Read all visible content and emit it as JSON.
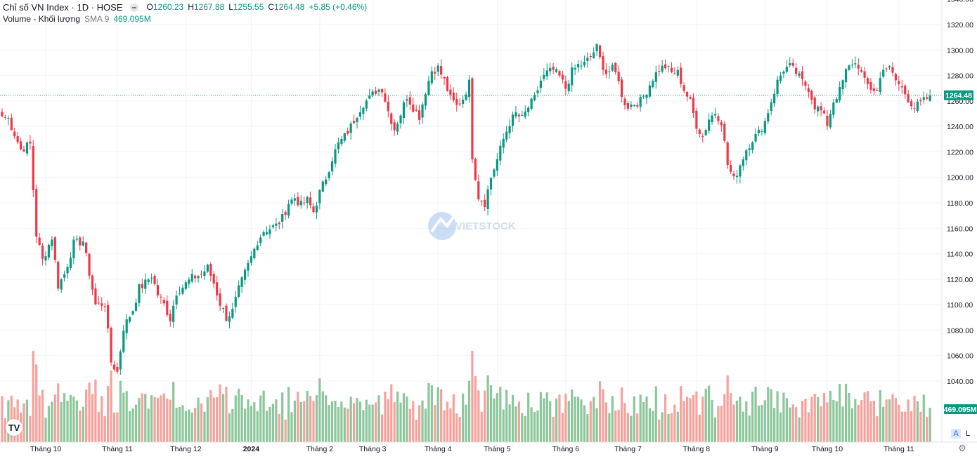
{
  "header": {
    "title": "Chỉ số VN Index · 1D · HOSE",
    "ohlc": {
      "o_label": "O",
      "o_value": "1260.23",
      "h_label": "H",
      "h_value": "1267.88",
      "l_label": "L",
      "l_value": "1255.55",
      "c_label": "C",
      "c_value": "1264.48",
      "change": "+5.85 (+0.46%)"
    },
    "volume_label": "Volume - Khối lượng",
    "sma_label": "SMA 9",
    "volume_value": "469.095M"
  },
  "watermark": {
    "text": "VIETSTOCK"
  },
  "logo": {
    "text": "TV"
  },
  "scale_buttons": {
    "auto": "A",
    "log": "L"
  },
  "icons": {
    "settings": "gear-icon"
  },
  "colors": {
    "up": "#089981",
    "down": "#f23645",
    "vol_up": "#8cc69b",
    "vol_down": "#f7a19c",
    "last_price_tag": "#089981"
  },
  "chart_data": [
    {
      "type": "candlestick",
      "title": "Chỉ số VN Index · 1D · HOSE",
      "y_ticks": [
        "1320.00",
        "1300.00",
        "1280.00",
        "1260.00",
        "1240.00",
        "1220.00",
        "1200.00",
        "1180.00",
        "1160.00",
        "1140.00",
        "1120.00",
        "1100.00",
        "1080.00",
        "1060.00",
        "1040.00"
      ],
      "ylim": [
        1036,
        1330
      ],
      "grid": true,
      "last_price_label": "1264.48",
      "last_price": 1264.48,
      "x_labels": [
        {
          "label": "Tháng 10",
          "i": 14
        },
        {
          "label": "Tháng 11",
          "i": 37
        },
        {
          "label": "Tháng 12",
          "i": 59
        },
        {
          "label": "2024",
          "i": 80
        },
        {
          "label": "Tháng 2",
          "i": 102
        },
        {
          "label": "Tháng 3",
          "i": 119
        },
        {
          "label": "Tháng 4",
          "i": 140
        },
        {
          "label": "Tháng 5",
          "i": 159
        },
        {
          "label": "Tháng 6",
          "i": 181
        },
        {
          "label": "Tháng 7",
          "i": 201
        },
        {
          "label": "Tháng 8",
          "i": 223
        },
        {
          "label": "Tháng 9",
          "i": 245
        },
        {
          "label": "Tháng 10",
          "i": 265
        },
        {
          "label": "Tháng 11",
          "i": 288
        }
      ],
      "anchors": [
        [
          0,
          1248
        ],
        [
          2,
          1246
        ],
        [
          6,
          1222
        ],
        [
          9,
          1226
        ],
        [
          11,
          1155
        ],
        [
          13,
          1135
        ],
        [
          16,
          1153
        ],
        [
          18,
          1115
        ],
        [
          20,
          1124
        ],
        [
          23,
          1148
        ],
        [
          26,
          1150
        ],
        [
          28,
          1125
        ],
        [
          30,
          1100
        ],
        [
          33,
          1101
        ],
        [
          35,
          1055
        ],
        [
          37,
          1047
        ],
        [
          39,
          1082
        ],
        [
          42,
          1096
        ],
        [
          44,
          1113
        ],
        [
          46,
          1117
        ],
        [
          48,
          1123
        ],
        [
          50,
          1108
        ],
        [
          52,
          1100
        ],
        [
          54,
          1089
        ],
        [
          56,
          1110
        ],
        [
          58,
          1114
        ],
        [
          61,
          1121
        ],
        [
          64,
          1124
        ],
        [
          66,
          1129
        ],
        [
          68,
          1117
        ],
        [
          70,
          1101
        ],
        [
          72,
          1090
        ],
        [
          74,
          1095
        ],
        [
          76,
          1112
        ],
        [
          78,
          1125
        ],
        [
          80,
          1137
        ],
        [
          82,
          1150
        ],
        [
          84,
          1158
        ],
        [
          86,
          1160
        ],
        [
          88,
          1162
        ],
        [
          90,
          1168
        ],
        [
          92,
          1180
        ],
        [
          94,
          1184
        ],
        [
          96,
          1178
        ],
        [
          98,
          1182
        ],
        [
          100,
          1173
        ],
        [
          102,
          1188
        ],
        [
          104,
          1200
        ],
        [
          106,
          1215
        ],
        [
          108,
          1226
        ],
        [
          110,
          1232
        ],
        [
          112,
          1240
        ],
        [
          114,
          1250
        ],
        [
          116,
          1258
        ],
        [
          118,
          1262
        ],
        [
          120,
          1268
        ],
        [
          122,
          1270
        ],
        [
          124,
          1252
        ],
        [
          126,
          1238
        ],
        [
          128,
          1250
        ],
        [
          130,
          1264
        ],
        [
          132,
          1255
        ],
        [
          134,
          1248
        ],
        [
          136,
          1268
        ],
        [
          138,
          1284
        ],
        [
          140,
          1286
        ],
        [
          142,
          1276
        ],
        [
          144,
          1262
        ],
        [
          146,
          1256
        ],
        [
          148,
          1262
        ],
        [
          150,
          1274
        ],
        [
          151,
          1217
        ],
        [
          153,
          1185
        ],
        [
          155,
          1180
        ],
        [
          157,
          1200
        ],
        [
          159,
          1214
        ],
        [
          161,
          1230
        ],
        [
          163,
          1243
        ],
        [
          165,
          1250
        ],
        [
          167,
          1246
        ],
        [
          169,
          1255
        ],
        [
          171,
          1262
        ],
        [
          173,
          1276
        ],
        [
          175,
          1282
        ],
        [
          177,
          1284
        ],
        [
          179,
          1279
        ],
        [
          181,
          1270
        ],
        [
          183,
          1283
        ],
        [
          185,
          1288
        ],
        [
          187,
          1289
        ],
        [
          189,
          1295
        ],
        [
          191,
          1302
        ],
        [
          192,
          1293
        ],
        [
          194,
          1282
        ],
        [
          196,
          1285
        ],
        [
          198,
          1278
        ],
        [
          199,
          1262
        ],
        [
          201,
          1256
        ],
        [
          203,
          1258
        ],
        [
          205,
          1260
        ],
        [
          207,
          1268
        ],
        [
          209,
          1278
        ],
        [
          211,
          1285
        ],
        [
          213,
          1287
        ],
        [
          215,
          1282
        ],
        [
          217,
          1282
        ],
        [
          219,
          1269
        ],
        [
          221,
          1259
        ],
        [
          223,
          1241
        ],
        [
          225,
          1232
        ],
        [
          227,
          1246
        ],
        [
          229,
          1251
        ],
        [
          231,
          1244
        ],
        [
          233,
          1210
        ],
        [
          235,
          1198
        ],
        [
          237,
          1210
        ],
        [
          239,
          1222
        ],
        [
          241,
          1230
        ],
        [
          243,
          1235
        ],
        [
          245,
          1244
        ],
        [
          247,
          1260
        ],
        [
          249,
          1275
        ],
        [
          251,
          1285
        ],
        [
          253,
          1287
        ],
        [
          255,
          1282
        ],
        [
          257,
          1275
        ],
        [
          259,
          1270
        ],
        [
          261,
          1256
        ],
        [
          263,
          1252
        ],
        [
          265,
          1242
        ],
        [
          267,
          1260
        ],
        [
          269,
          1268
        ],
        [
          271,
          1283
        ],
        [
          273,
          1290
        ],
        [
          275,
          1288
        ],
        [
          277,
          1275
        ],
        [
          279,
          1270
        ],
        [
          281,
          1268
        ],
        [
          283,
          1287
        ],
        [
          285,
          1285
        ],
        [
          287,
          1276
        ],
        [
          289,
          1270
        ],
        [
          291,
          1262
        ],
        [
          293,
          1255
        ],
        [
          295,
          1258
        ],
        [
          297,
          1262
        ],
        [
          298,
          1264.48
        ]
      ]
    },
    {
      "type": "bar",
      "series": [
        {
          "name": "Volume - Khối lượng",
          "values": "generated per candle"
        }
      ],
      "last_value_label": "469.095M"
    }
  ]
}
